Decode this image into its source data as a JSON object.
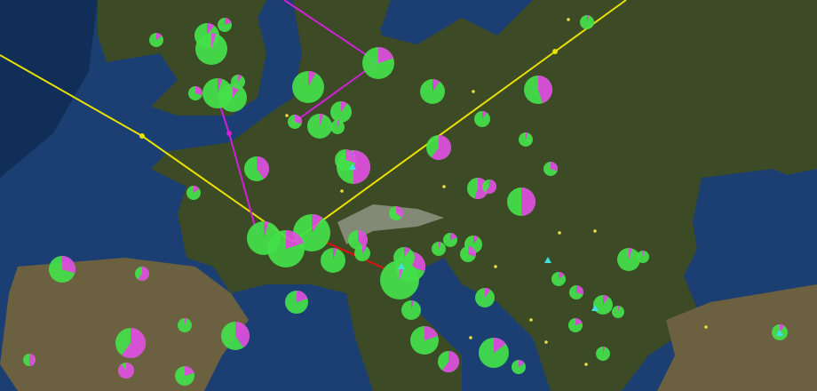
{
  "map": {
    "colors": {
      "sea": "#1b3f73",
      "deep_sea": "#0c2346",
      "land": "#3d4a26",
      "land_dry": "#6b6040",
      "mountains": "#d8d8d8",
      "pie_primary": "#44e04a",
      "pie_secondary": "#e050e0",
      "route_yellow": "#e8e000",
      "route_magenta": "#d020d8",
      "route_red": "#e01010",
      "site_dot": "#e8e040",
      "highlight": "#40e0e0"
    },
    "pie_secondary_fractions": [
      0.15,
      0.1,
      0.05,
      0.2,
      0.05,
      0.1,
      0.1,
      0.3,
      0.08,
      0.05,
      0.1,
      0.05,
      0.3,
      0.2,
      0.1,
      0.45,
      0.1,
      0.05,
      0.6,
      0.05,
      0.3,
      0.5,
      0.3,
      0.4,
      0.15,
      0.55,
      0.6,
      0.5,
      0.35,
      0.1,
      0.05,
      0.2,
      0.05,
      0.4,
      0.1,
      0.3,
      0.05,
      0.1,
      0.05,
      0.2,
      0.1,
      0.3,
      0.05,
      0.05,
      0.15,
      0.3,
      0.1,
      0.2,
      0.05,
      0.3,
      0.6,
      0.6,
      0.4,
      0.05,
      0.2,
      0.5,
      0.9,
      0.2,
      0.6,
      0.15
    ]
  }
}
